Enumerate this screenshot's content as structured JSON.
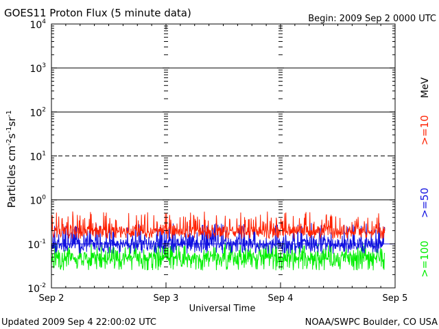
{
  "chart_data": {
    "type": "line",
    "title": "GOES11 Proton Flux (5 minute data)",
    "begin_label": "Begin: 2009 Sep 2 0000 UTC",
    "ylabel": "Particles cm",
    "ylabel_units": {
      "sup1": "-2",
      "s": "s",
      "sup2": "-1",
      "sr": "sr",
      "sup3": "-1"
    },
    "xlabel": "Universal Time",
    "yscale": "log",
    "ylim": [
      0.01,
      10000
    ],
    "y_ticks": [
      {
        "base": "10",
        "exp": "-2"
      },
      {
        "base": "10",
        "exp": "-1"
      },
      {
        "base": "10",
        "exp": "0"
      },
      {
        "base": "10",
        "exp": "1"
      },
      {
        "base": "10",
        "exp": "2"
      },
      {
        "base": "10",
        "exp": "3"
      },
      {
        "base": "10",
        "exp": "4"
      }
    ],
    "x_ticks": [
      "Sep 2",
      "Sep 3",
      "Sep 4",
      "Sep 5"
    ],
    "xlim_days": [
      0,
      3
    ],
    "energy_unit": "MeV",
    "series": [
      {
        "name": ">=10",
        "color": "#ff2000",
        "baseline": 0.2,
        "spread": [
          0.13,
          0.55
        ]
      },
      {
        "name": ">=50",
        "color": "#1010e0",
        "baseline": 0.1,
        "spread": [
          0.06,
          0.3
        ]
      },
      {
        "name": ">=100",
        "color": "#00ee00",
        "baseline": 0.05,
        "spread": [
          0.025,
          0.11
        ]
      }
    ],
    "threshold_lines": [
      {
        "value": 1,
        "style": "solid"
      },
      {
        "value": 10,
        "style": "dashed"
      },
      {
        "value": 100,
        "style": "solid"
      },
      {
        "value": 1000,
        "style": "solid"
      },
      {
        "value": 0.1,
        "style": "solid",
        "color": "#1010e0"
      }
    ],
    "sample_count": 864
  },
  "footer": {
    "updated": "Updated 2009 Sep  4 22:00:02 UTC",
    "credit": "NOAA/SWPC Boulder, CO USA"
  }
}
